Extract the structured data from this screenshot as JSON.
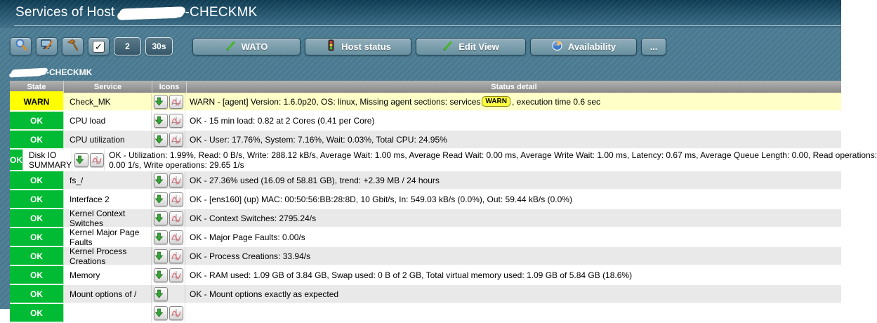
{
  "page": {
    "title_prefix": "Services of Host",
    "title_suffix": "-CHECKMK",
    "hostname_redacted": true
  },
  "toolbar": {
    "small_buttons": [
      {
        "name": "search",
        "icon": "search-icon"
      },
      {
        "name": "painter-options",
        "icon": "monitor-pen-icon"
      },
      {
        "name": "commands",
        "icon": "hammer-icon"
      },
      {
        "name": "checkboxes",
        "icon": "checkbox-checked-icon",
        "glyph": "✓"
      },
      {
        "name": "columns",
        "label": "2"
      },
      {
        "name": "refresh",
        "label": "30s"
      }
    ],
    "context_buttons": [
      {
        "label": "WATO",
        "icon": "pencil-icon"
      },
      {
        "label": "Host status",
        "icon": "traffic-light-icon"
      },
      {
        "label": "Edit View",
        "icon": "pencil-icon"
      },
      {
        "label": "Availability",
        "icon": "pie-chart-icon"
      },
      {
        "label": "...",
        "icon": null
      }
    ]
  },
  "host_group_label": {
    "suffix": "-CHECKMK"
  },
  "table": {
    "headers": [
      "State",
      "Service",
      "Icons",
      "Status detail"
    ],
    "rows": [
      {
        "state": "WARN",
        "service": "Check_MK",
        "icons": [
          "service-menu-icon",
          "service-graph-icon"
        ],
        "detail": {
          "pre": "WARN - [agent] Version: 1.6.0p20, OS: linux, Missing agent sections: services",
          "badge": "WARN",
          "post": ", execution time 0.6 sec"
        }
      },
      {
        "state": "OK",
        "service": "CPU load",
        "icons": [
          "service-menu-icon",
          "service-graph-icon"
        ],
        "detail": {
          "text": "OK - 15 min load: 0.82 at 2 Cores (0.41 per Core)"
        }
      },
      {
        "state": "OK",
        "service": "CPU utilization",
        "icons": [
          "service-menu-icon",
          "service-graph-icon"
        ],
        "detail": {
          "text": "OK - User: 17.76%, System: 7.16%, Wait: 0.03%, Total CPU: 24.95%"
        }
      },
      {
        "state": "OK",
        "service": "Disk IO SUMMARY",
        "icons": [
          "service-menu-icon",
          "service-graph-icon"
        ],
        "detail": {
          "lines": [
            "OK - Utilization: 1.99%, Read: 0 B/s, Write: 288.12 kB/s, Average Wait: 1.00 ms, Average Read Wait: 0.00 ms, Average Write Wait: 1.00 ms, Latency: 0.67 ms, Average Queue Length: 0.00, Read operations:",
            "0.00 1/s, Write operations: 29.65 1/s"
          ]
        }
      },
      {
        "state": "OK",
        "service": "fs_/",
        "icons": [
          "service-menu-icon",
          "service-graph-icon"
        ],
        "detail": {
          "text": "OK - 27.36% used (16.09 of 58.81 GB), trend: +2.39 MB / 24 hours"
        }
      },
      {
        "state": "OK",
        "service": "Interface 2",
        "icons": [
          "service-menu-icon",
          "service-graph-icon"
        ],
        "detail": {
          "text": "OK - [ens160] (up) MAC: 00:50:56:BB:28:8D, 10 Gbit/s, In: 549.03 kB/s (0.0%), Out: 59.44 kB/s (0.0%)"
        }
      },
      {
        "state": "OK",
        "service": "Kernel Context Switches",
        "icons": [
          "service-menu-icon",
          "service-graph-icon"
        ],
        "detail": {
          "text": "OK - Context Switches: 2795.24/s"
        }
      },
      {
        "state": "OK",
        "service": "Kernel Major Page Faults",
        "icons": [
          "service-menu-icon",
          "service-graph-icon"
        ],
        "detail": {
          "text": "OK - Major Page Faults: 0.00/s"
        }
      },
      {
        "state": "OK",
        "service": "Kernel Process Creations",
        "icons": [
          "service-menu-icon",
          "service-graph-icon"
        ],
        "detail": {
          "text": "OK - Process Creations: 33.94/s"
        }
      },
      {
        "state": "OK",
        "service": "Memory",
        "icons": [
          "service-menu-icon",
          "service-graph-icon"
        ],
        "detail": {
          "text": "OK - RAM used: 1.09 GB of 3.84 GB, Swap used: 0 B of 2 GB, Total virtual memory used: 1.09 GB of 5.84 GB (18.6%)"
        }
      },
      {
        "state": "OK",
        "service": "Mount options of /",
        "icons": [
          "service-menu-icon"
        ],
        "detail": {
          "text": "OK - Mount options exactly as expected"
        }
      },
      {
        "state": "OK",
        "service": "",
        "icons": [
          "service-menu-icon",
          "service-graph-icon"
        ],
        "detail": {
          "text": ""
        },
        "partial": true
      }
    ]
  },
  "colors": {
    "ok_state": "#00bb33",
    "warn_state": "#ffff00",
    "warn_row": "#ffffc8",
    "row_alt": "#e9e9e9",
    "page_background": "#4a7a91",
    "header_gray": "#8a8a8a"
  }
}
